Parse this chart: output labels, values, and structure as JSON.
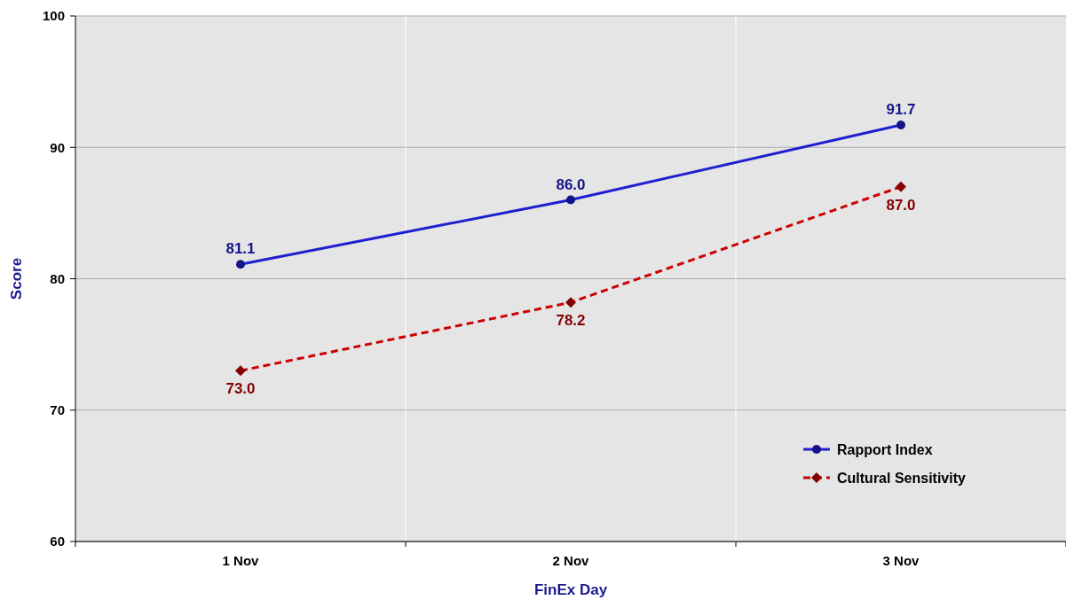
{
  "chart_data": {
    "type": "line",
    "xlabel": "FinEx Day",
    "ylabel": "Score",
    "categories": [
      "1 Nov",
      "2 Nov",
      "3 Nov"
    ],
    "series": [
      {
        "name": "Rapport Index",
        "color": "#1f1fd0",
        "values": [
          81.1,
          86.0,
          91.7
        ],
        "marker": "circle",
        "line_style": "solid",
        "value_labels": [
          "81.1",
          "86.0",
          "91.7"
        ]
      },
      {
        "name": "Cultural Sensitivity",
        "color": "#cc0000",
        "values": [
          73.0,
          78.2,
          87.0
        ],
        "marker": "diamond",
        "line_style": "dashed",
        "value_labels": [
          "73.0",
          "78.2",
          "87.0"
        ]
      }
    ],
    "ylim": [
      60,
      100
    ],
    "yticks": [
      60,
      70,
      80,
      90,
      100
    ],
    "grid": true,
    "legend": "bottom right"
  }
}
